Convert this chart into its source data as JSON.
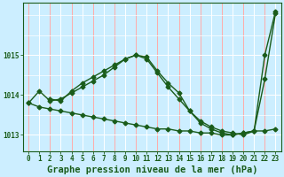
{
  "title": "Graphe pression niveau de la mer (hPa)",
  "bg_color": "#cceeff",
  "grid_color_major": "#ffaaaa",
  "grid_color_minor": "#ffffff",
  "line_color": "#1a5c1a",
  "xlim": [
    -0.5,
    23.5
  ],
  "ylim": [
    1012.6,
    1016.3
  ],
  "yticks": [
    1013,
    1014,
    1015
  ],
  "xticks": [
    0,
    1,
    2,
    3,
    4,
    5,
    6,
    7,
    8,
    9,
    10,
    11,
    12,
    13,
    14,
    15,
    16,
    17,
    18,
    19,
    20,
    21,
    22,
    23
  ],
  "series": [
    {
      "x": [
        0,
        1,
        2,
        3,
        4,
        5,
        6,
        7,
        8,
        9,
        10,
        11,
        12,
        13,
        14,
        15,
        16,
        17,
        18,
        19,
        20,
        21,
        22,
        23
      ],
      "y": [
        1013.8,
        1013.7,
        1013.65,
        1013.6,
        1013.55,
        1013.5,
        1013.45,
        1013.4,
        1013.35,
        1013.3,
        1013.25,
        1013.2,
        1013.15,
        1013.15,
        1013.1,
        1013.1,
        1013.05,
        1013.05,
        1013.0,
        1013.0,
        1013.05,
        1013.1,
        1013.1,
        1013.15
      ]
    },
    {
      "x": [
        0,
        1,
        2,
        3,
        4,
        5,
        6,
        7,
        8,
        9,
        10,
        11,
        12,
        13,
        14,
        15,
        16,
        17,
        18,
        19,
        20,
        21,
        22,
        23
      ],
      "y": [
        1013.8,
        1014.1,
        1013.85,
        1013.9,
        1014.05,
        1014.2,
        1014.35,
        1014.5,
        1014.7,
        1014.9,
        1015.0,
        1014.9,
        1014.55,
        1014.2,
        1013.9,
        1013.6,
        1013.3,
        1013.15,
        1013.05,
        1013.0,
        1013.05,
        1013.1,
        1015.0,
        1016.1
      ]
    },
    {
      "x": [
        2,
        3,
        4,
        5,
        6,
        7,
        8,
        9,
        10,
        11,
        12,
        13,
        14,
        15,
        16,
        17,
        18,
        19,
        20,
        21,
        22,
        23
      ],
      "y": [
        1013.9,
        1013.85,
        1014.1,
        1014.3,
        1014.45,
        1014.6,
        1014.75,
        1014.9,
        1015.0,
        1014.95,
        1014.6,
        1014.3,
        1014.05,
        1013.6,
        1013.35,
        1013.2,
        1013.1,
        1013.05,
        1013.0,
        1013.1,
        1014.4,
        1016.05
      ]
    }
  ],
  "marker": "D",
  "markersize": 2.5,
  "linewidth": 1.0,
  "tick_fontsize": 5.5,
  "label_fontsize": 7.5,
  "label_fontweight": "bold"
}
